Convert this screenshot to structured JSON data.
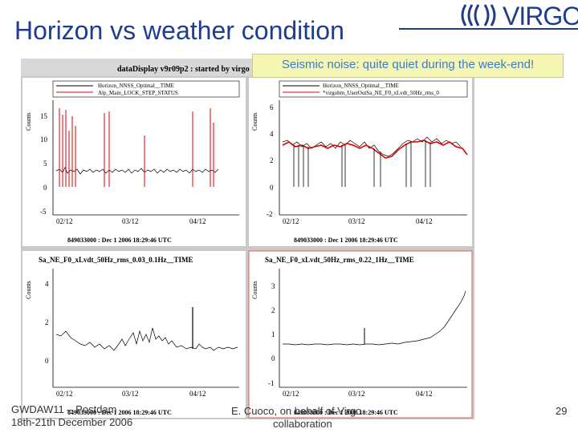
{
  "slide": {
    "title": "Horizon vs weather condition",
    "logo_text": "VIRGO",
    "note": "Seismic noise: quite quiet during the week-end!",
    "footer_left_1": "GWDAW11 – Postdam",
    "footer_left_2": "18th-21th December 2006",
    "footer_center_1": "E. Cuoco, on behalf of Virgo",
    "footer_center_2": "collaboration",
    "page_number": "29"
  },
  "screenshot": {
    "window_title": "dataDisplay v9r09p2 : started by virgo",
    "panels": [
      {
        "legend": [
          "Horizon_NNSS_Optimal__TIME",
          "Alp_Main_LOCK_STEP_STATUS"
        ],
        "ylabel": "Counts",
        "yticks": [
          "15",
          "10",
          "5",
          "0",
          "-5"
        ],
        "xticks": [
          "02/12",
          "03/12",
          "04/12"
        ],
        "stamp": "849033000 : Dec  1 2006 18:29:46 UTC"
      },
      {
        "legend": [
          "Horizon_NNSS_Optimal__TIME",
          "*virgohm_UserOutSa_NE_F0_xLvdt_50Hz_rms_0"
        ],
        "ylabel": "Counts",
        "yticks": [
          "6",
          "4",
          "2",
          "0",
          "-2"
        ],
        "xticks": [
          "02/12",
          "03/12",
          "04/12"
        ],
        "stamp": "849033000 : Dec  1 2006 18:29:46 UTC"
      },
      {
        "legend": [
          "Sa_NE_F0_xLvdt_50Hz_rms_0.03_0.1Hz__TIME"
        ],
        "ylabel": "Counts",
        "yticks": [
          "4",
          "2",
          "0"
        ],
        "xticks": [
          "02/12",
          "03/12",
          "04/12"
        ],
        "stamp": "849033000 : Dec  1 2006 18:29:46 UTC"
      },
      {
        "legend": [
          "Sa_NE_F0_xLvdt_50Hz_rms_0.22_1Hz__TIME"
        ],
        "ylabel": "Counts",
        "yticks": [
          "3",
          "2",
          "1",
          "0",
          "-1"
        ],
        "xticks": [
          "02/12",
          "03/12",
          "04/12"
        ],
        "stamp": "849033000 : Dec  1 2006 18:29:46 UTC"
      }
    ]
  },
  "colors": {
    "title": "#1f3d8c",
    "note_bg": "#f5f5b4",
    "note_text": "#3a7dd0",
    "trace_black": "#000000",
    "trace_red": "#e00000"
  }
}
